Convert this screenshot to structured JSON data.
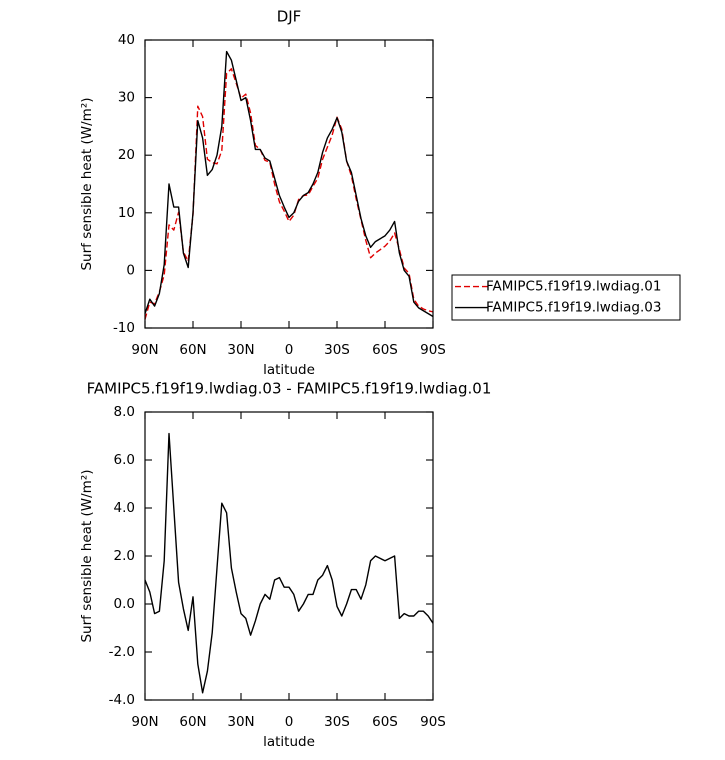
{
  "chart_data": [
    {
      "type": "line",
      "title": "DJF",
      "ylabel": "Surf sensible heat (W/m²)",
      "xlabel": "latitude",
      "x": [
        90,
        87,
        84,
        81,
        78,
        75,
        72,
        69,
        66,
        63,
        60,
        57,
        54,
        51,
        48,
        45,
        42,
        39,
        36,
        33,
        30,
        27,
        24,
        21,
        18,
        15,
        12,
        9,
        6,
        3,
        0,
        -3,
        -6,
        -9,
        -12,
        -15,
        -18,
        -21,
        -24,
        -27,
        -30,
        -33,
        -36,
        -39,
        -42,
        -45,
        -48,
        -51,
        -54,
        -57,
        -60,
        -63,
        -66,
        -69,
        -72,
        -75,
        -78,
        -81,
        -84,
        -87,
        -90
      ],
      "xlim": [
        90,
        -90
      ],
      "xticks": [
        {
          "value": 90,
          "label": "90N"
        },
        {
          "value": 60,
          "label": "60N"
        },
        {
          "value": 30,
          "label": "30N"
        },
        0,
        {
          "value": -30,
          "label": "30S"
        },
        {
          "value": -60,
          "label": "60S"
        },
        {
          "value": -90,
          "label": "90S"
        }
      ],
      "ylim": [
        -10,
        40
      ],
      "yticks": [
        -10,
        0,
        10,
        20,
        30,
        40
      ],
      "legend": "right",
      "series": [
        {
          "name": "FAMIPC5.f19f19.lwdiag.01",
          "color": "#e00000",
          "line_style": "dashed",
          "values": [
            -8.5,
            -5.5,
            -5.8,
            -3.7,
            -0.8,
            7.9,
            7,
            10.1,
            3.2,
            1.6,
            9.7,
            28.5,
            26.7,
            19.3,
            18.7,
            18.5,
            20.8,
            34.2,
            35,
            32.5,
            29.9,
            30.6,
            27.3,
            21.7,
            21,
            19.1,
            18.8,
            15,
            11.9,
            10.3,
            8.5,
            9.6,
            12.3,
            13,
            13.1,
            14.6,
            16,
            19.3,
            21.4,
            23.5,
            26.6,
            24.5,
            19,
            16.4,
            12.4,
            8.8,
            5.2,
            2.2,
            3,
            3.6,
            4.2,
            5.1,
            6.5,
            3.6,
            0.4,
            -0.5,
            -5,
            -6.2,
            -6.7,
            -7,
            -7.2
          ]
        },
        {
          "name": "FAMIPC5.f19f19.lwdiag.03",
          "color": "#000000",
          "line_style": "solid",
          "values": [
            -7.5,
            -5,
            -6.2,
            -4,
            1,
            15,
            11,
            11,
            3,
            0.5,
            10,
            26,
            23,
            16.5,
            17.5,
            20,
            25,
            38,
            36.5,
            33,
            29.5,
            30,
            26,
            21,
            21,
            19.5,
            19,
            16,
            13,
            11,
            9.2,
            10,
            12,
            13,
            13.5,
            15,
            17,
            20.5,
            23,
            24.5,
            26.5,
            24,
            19,
            17,
            13,
            9,
            6,
            4,
            5,
            5.5,
            6,
            7,
            8.5,
            3,
            0,
            -1,
            -5.5,
            -6.5,
            -7,
            -7.5,
            -8
          ]
        }
      ]
    },
    {
      "type": "line",
      "title": "FAMIPC5.f19f19.lwdiag.03 - FAMIPC5.f19f19.lwdiag.01",
      "ylabel": "Surf sensible heat (W/m²)",
      "xlabel": "latitude",
      "x": [
        90,
        87,
        84,
        81,
        78,
        75,
        72,
        69,
        66,
        63,
        60,
        57,
        54,
        51,
        48,
        45,
        42,
        39,
        36,
        33,
        30,
        27,
        24,
        21,
        18,
        15,
        12,
        9,
        6,
        3,
        0,
        -3,
        -6,
        -9,
        -12,
        -15,
        -18,
        -21,
        -24,
        -27,
        -30,
        -33,
        -36,
        -39,
        -42,
        -45,
        -48,
        -51,
        -54,
        -57,
        -60,
        -63,
        -66,
        -69,
        -72,
        -75,
        -78,
        -81,
        -84,
        -87,
        -90
      ],
      "xlim": [
        90,
        -90
      ],
      "xticks": [
        {
          "value": 90,
          "label": "90N"
        },
        {
          "value": 60,
          "label": "60N"
        },
        {
          "value": 30,
          "label": "30N"
        },
        0,
        {
          "value": -30,
          "label": "30S"
        },
        {
          "value": -60,
          "label": "60S"
        },
        {
          "value": -90,
          "label": "90S"
        }
      ],
      "ylim": [
        -4,
        8
      ],
      "yticks": [
        {
          "value": -4,
          "label": "-4.0"
        },
        {
          "value": -2,
          "label": "-2.0"
        },
        {
          "value": 0,
          "label": "0.0"
        },
        {
          "value": 2,
          "label": "2.0"
        },
        {
          "value": 4,
          "label": "4.0"
        },
        {
          "value": 6,
          "label": "6.0"
        },
        {
          "value": 8,
          "label": "8.0"
        }
      ],
      "series": [
        {
          "color": "#000000",
          "line_style": "solid",
          "values": [
            1.0,
            0.5,
            -0.4,
            -0.3,
            1.8,
            7.1,
            4.0,
            0.9,
            -0.2,
            -1.1,
            0.3,
            -2.5,
            -3.7,
            -2.8,
            -1.2,
            1.5,
            4.2,
            3.8,
            1.5,
            0.5,
            -0.4,
            -0.6,
            -1.3,
            -0.7,
            0.0,
            0.4,
            0.2,
            1.0,
            1.1,
            0.7,
            0.7,
            0.4,
            -0.3,
            0.0,
            0.4,
            0.4,
            1.0,
            1.2,
            1.6,
            1.0,
            -0.1,
            -0.5,
            0.0,
            0.6,
            0.6,
            0.2,
            0.8,
            1.8,
            2.0,
            1.9,
            1.8,
            1.9,
            2.0,
            -0.6,
            -0.4,
            -0.5,
            -0.5,
            -0.3,
            -0.3,
            -0.5,
            -0.8
          ]
        }
      ]
    }
  ]
}
